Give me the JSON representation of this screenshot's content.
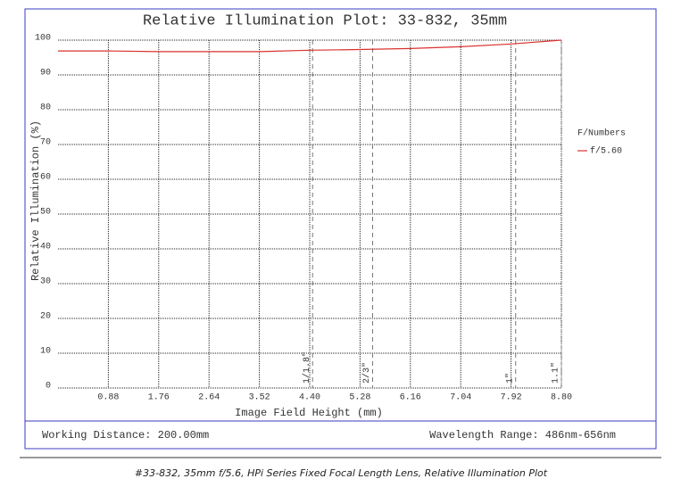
{
  "chart_data": {
    "type": "line",
    "title": "Relative Illumination Plot: 33-832, 35mm",
    "x_label": "Image Field Height (mm)",
    "y_label": "Relative Illumination (%)",
    "x": [
      0,
      0.88,
      1.76,
      2.64,
      3.52,
      4.4,
      5.28,
      6.16,
      7.04,
      7.92,
      8.8
    ],
    "series": [
      {
        "name": "f/5.60",
        "color": "#d9322e",
        "values": [
          96.9,
          96.9,
          96.7,
          96.7,
          96.7,
          97.1,
          97.3,
          97.6,
          98.1,
          98.9,
          100
        ]
      }
    ],
    "legend_title": "F/Numbers",
    "legend_position": "right",
    "xlim": [
      0,
      8.8
    ],
    "ylim": [
      0,
      100
    ],
    "xticks": [
      0.88,
      1.76,
      2.64,
      3.52,
      {
        "value": 4.4,
        "label": "4.40"
      },
      5.28,
      6.16,
      7.04,
      7.92,
      {
        "value": 8.8,
        "label": "8.80"
      }
    ],
    "yticks": [
      0,
      10,
      20,
      30,
      40,
      50,
      60,
      70,
      80,
      90,
      100
    ],
    "grid": true,
    "annotations": [
      {
        "label": "1/1.8\"",
        "x": 4.45
      },
      {
        "label": "2/3\"",
        "x": 5.5
      },
      {
        "label": "1\"",
        "x": 8.0
      },
      {
        "label": "1.1\"",
        "x": 8.8
      }
    ],
    "footer_left": "Working Distance: 200.00mm",
    "footer_right": "Wavelength Range: 486nm-656nm",
    "caption": "#33-832, 35mm f/5.6, HPi Series Fixed Focal Length Lens, Relative Illumination Plot"
  }
}
